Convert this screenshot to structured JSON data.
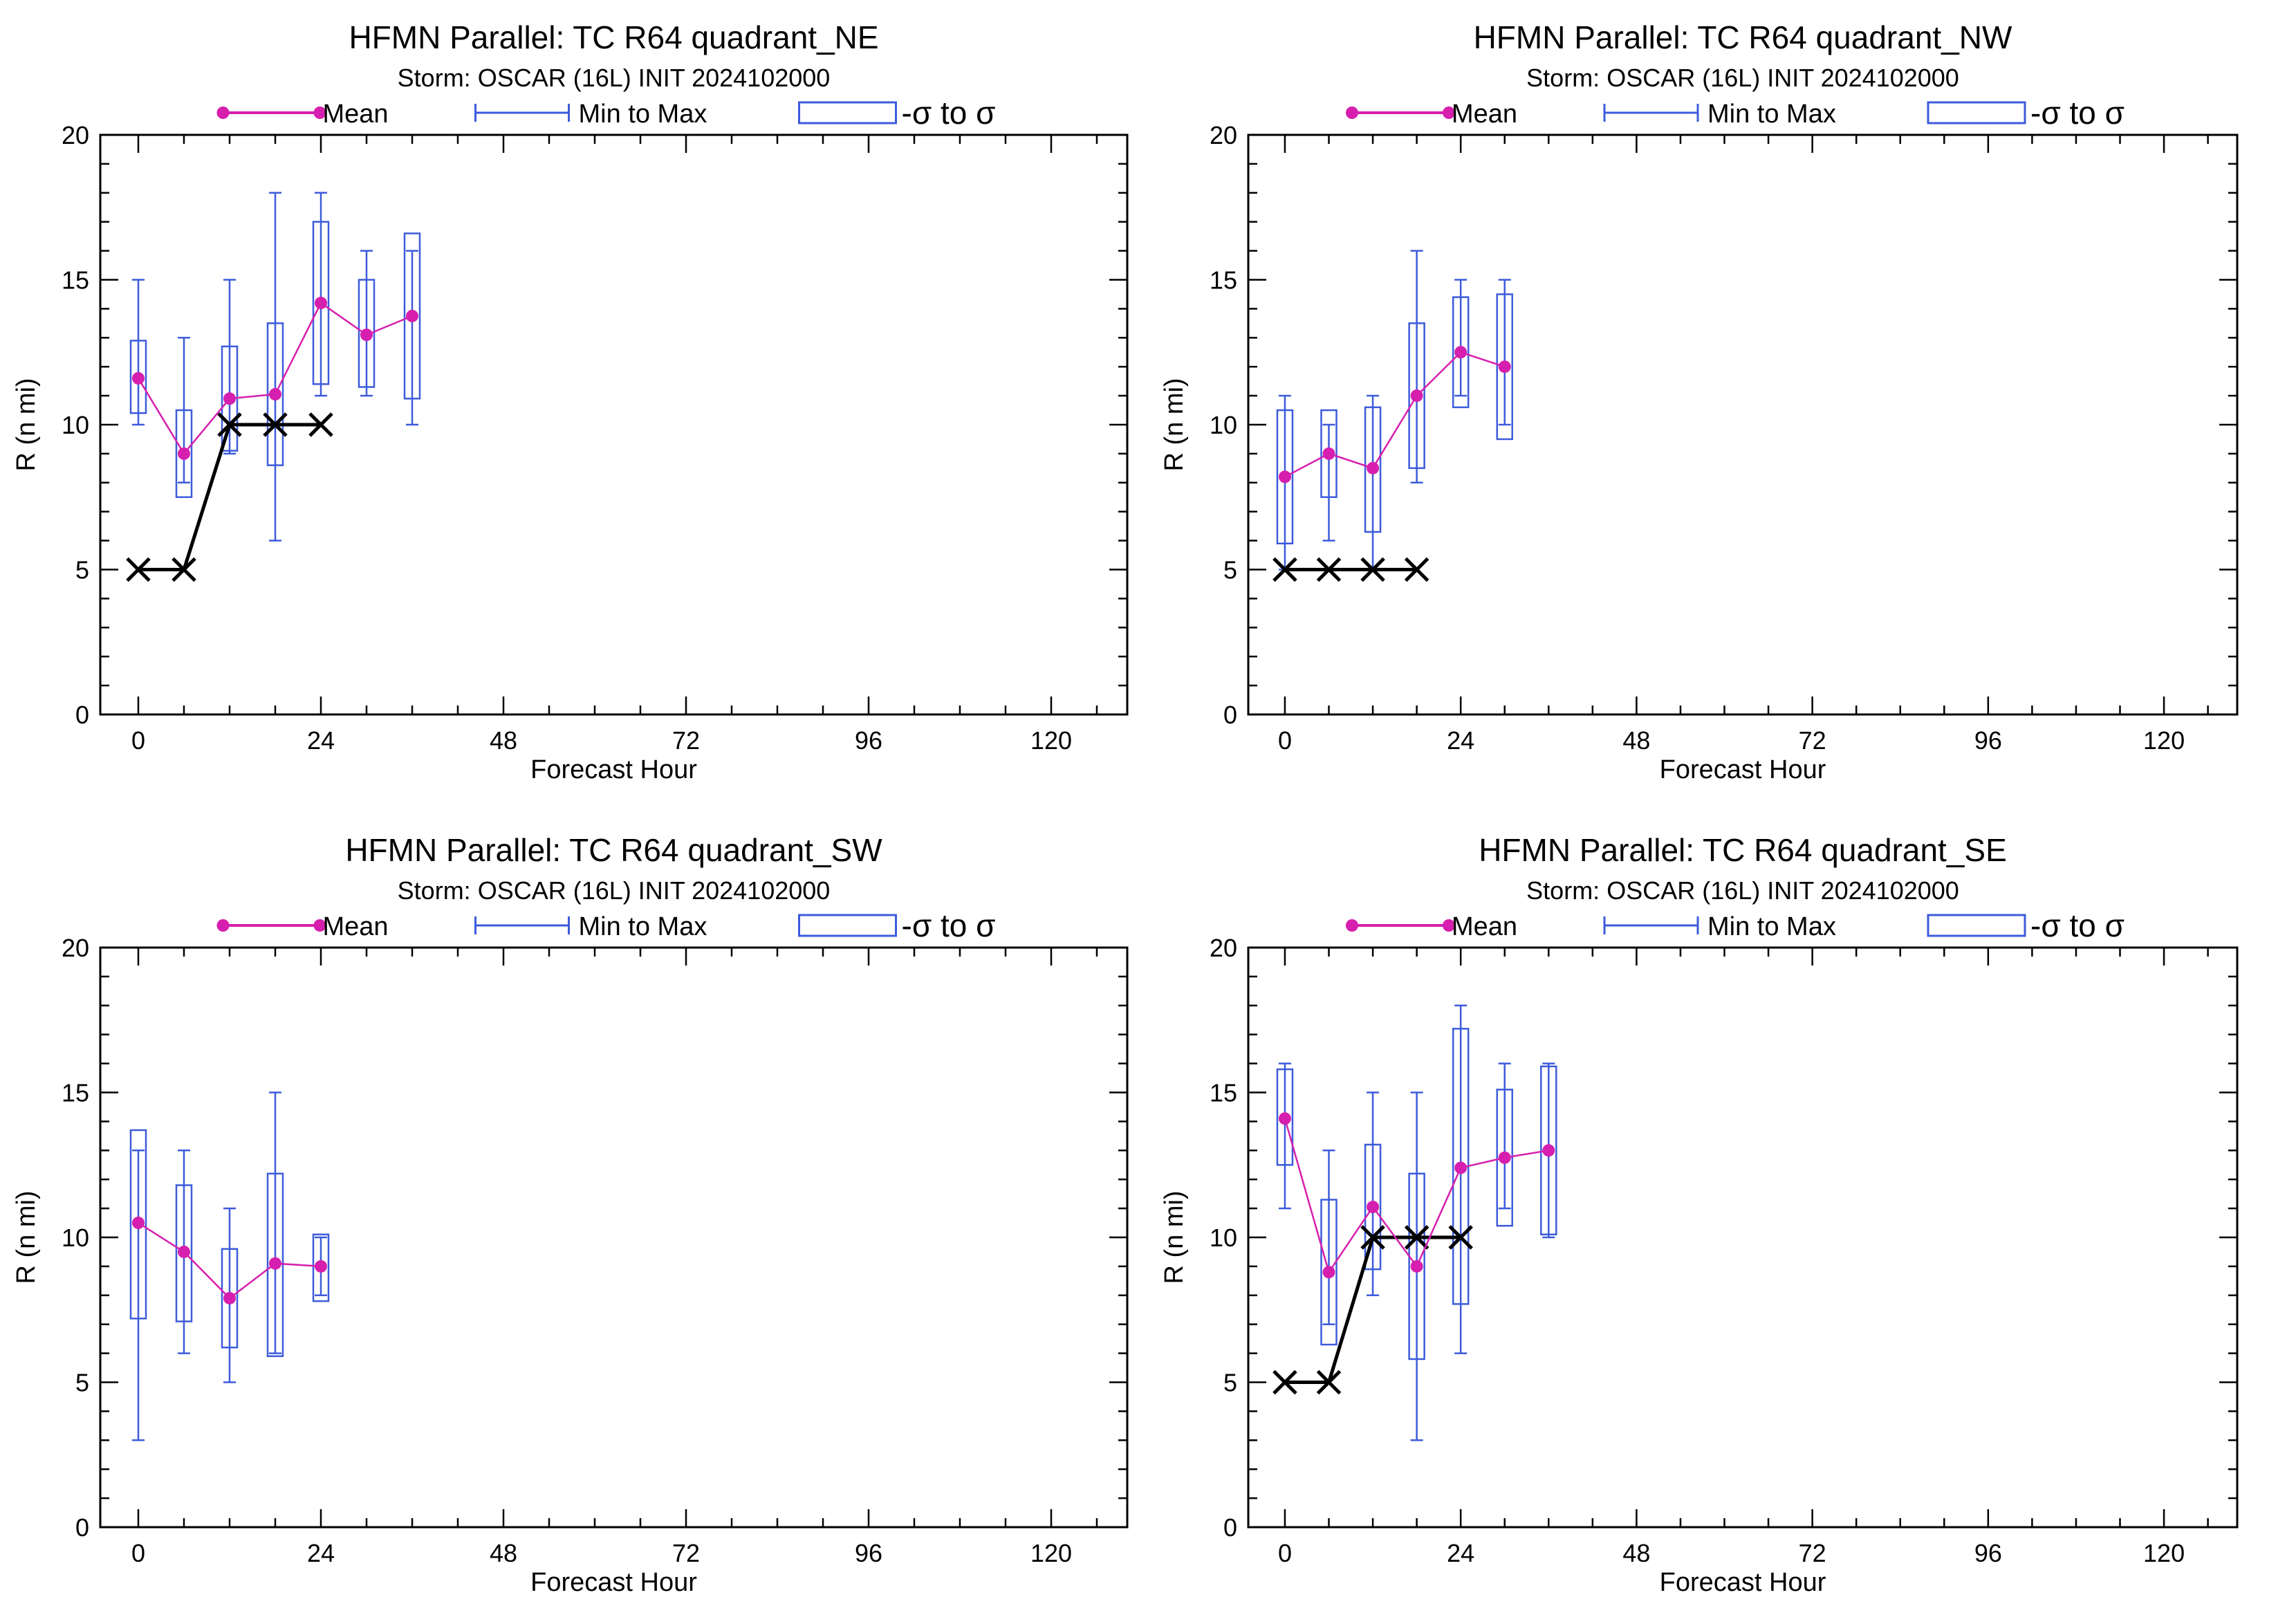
{
  "colors": {
    "mean": "#d61fae",
    "spread": "#3d5bdb",
    "best_track": "#000000",
    "axis": "#000000"
  },
  "legend": {
    "mean": "Mean",
    "range": "Min to Max",
    "sigma": "-σ to σ"
  },
  "chart_data": [
    {
      "type": "box",
      "title": "HFMN Parallel: TC  R64 quadrant_NE",
      "subtitle": "Storm: OSCAR (16L) INIT 2024102000",
      "xlabel": "Forecast Hour",
      "ylabel": "R (n mi)",
      "xlim": [
        -5,
        130
      ],
      "ylim": [
        0,
        20
      ],
      "xticks": [
        0,
        24,
        48,
        72,
        96,
        120
      ],
      "yticks": [
        0,
        5,
        10,
        15,
        20
      ],
      "x": [
        0,
        6,
        12,
        18,
        24,
        30,
        36
      ],
      "mean": [
        11.6,
        9.0,
        10.9,
        11.05,
        14.2,
        13.1,
        13.75
      ],
      "min": [
        10,
        8,
        9,
        6,
        11,
        11,
        10
      ],
      "max": [
        15,
        13,
        15,
        18,
        18,
        16,
        16
      ],
      "sd_low": [
        10.4,
        7.5,
        9.1,
        8.6,
        11.4,
        11.3,
        10.9
      ],
      "sd_high": [
        12.9,
        10.5,
        12.7,
        13.5,
        17.0,
        15.0,
        16.6
      ],
      "best_track": {
        "x": [
          0,
          6,
          12,
          18,
          24
        ],
        "y": [
          5,
          5,
          10,
          10,
          10
        ]
      }
    },
    {
      "type": "box",
      "title": "HFMN Parallel: TC  R64 quadrant_NW",
      "subtitle": "Storm: OSCAR (16L) INIT 2024102000",
      "xlabel": "Forecast Hour",
      "ylabel": "R (n mi)",
      "xlim": [
        -5,
        130
      ],
      "ylim": [
        0,
        20
      ],
      "xticks": [
        0,
        24,
        48,
        72,
        96,
        120
      ],
      "yticks": [
        0,
        5,
        10,
        15,
        20
      ],
      "x": [
        0,
        6,
        12,
        18,
        24,
        30
      ],
      "mean": [
        8.2,
        9.0,
        8.5,
        11.0,
        12.5,
        12.0
      ],
      "min": [
        5,
        6,
        5,
        8,
        11,
        10
      ],
      "max": [
        11,
        10,
        11,
        16,
        15,
        15
      ],
      "sd_low": [
        5.9,
        7.5,
        6.3,
        8.5,
        10.6,
        9.5
      ],
      "sd_high": [
        10.5,
        10.5,
        10.6,
        13.5,
        14.4,
        14.5
      ],
      "best_track": {
        "x": [
          0,
          6,
          12,
          18
        ],
        "y": [
          5,
          5,
          5,
          5
        ]
      }
    },
    {
      "type": "box",
      "title": "HFMN Parallel: TC  R64 quadrant_SW",
      "subtitle": "Storm: OSCAR (16L) INIT 2024102000",
      "xlabel": "Forecast Hour",
      "ylabel": "R (n mi)",
      "xlim": [
        -5,
        130
      ],
      "ylim": [
        0,
        20
      ],
      "xticks": [
        0,
        24,
        48,
        72,
        96,
        120
      ],
      "yticks": [
        0,
        5,
        10,
        15,
        20
      ],
      "x": [
        0,
        6,
        12,
        18,
        24
      ],
      "mean": [
        10.5,
        9.5,
        7.9,
        9.1,
        9.0
      ],
      "min": [
        3,
        6,
        5,
        6,
        8
      ],
      "max": [
        13,
        13,
        11,
        15,
        10
      ],
      "sd_low": [
        7.2,
        7.1,
        6.2,
        5.9,
        7.8
      ],
      "sd_high": [
        13.7,
        11.8,
        9.6,
        12.2,
        10.1
      ],
      "best_track": null
    },
    {
      "type": "box",
      "title": "HFMN Parallel: TC  R64 quadrant_SE",
      "subtitle": "Storm: OSCAR (16L) INIT 2024102000",
      "xlabel": "Forecast Hour",
      "ylabel": "R (n mi)",
      "xlim": [
        -5,
        130
      ],
      "ylim": [
        0,
        20
      ],
      "xticks": [
        0,
        24,
        48,
        72,
        96,
        120
      ],
      "yticks": [
        0,
        5,
        10,
        15,
        20
      ],
      "x": [
        0,
        6,
        12,
        18,
        24,
        30,
        36
      ],
      "mean": [
        14.1,
        8.8,
        11.05,
        9.0,
        12.4,
        12.75,
        13.0
      ],
      "min": [
        11,
        7,
        8,
        3,
        6,
        11,
        10
      ],
      "max": [
        16,
        13,
        15,
        15,
        18,
        16,
        16
      ],
      "sd_low": [
        12.5,
        6.3,
        8.9,
        5.8,
        7.7,
        10.4,
        10.1
      ],
      "sd_high": [
        15.8,
        11.3,
        13.2,
        12.2,
        17.2,
        15.1,
        15.9
      ],
      "best_track": {
        "x": [
          0,
          6,
          12,
          18,
          24
        ],
        "y": [
          5,
          5,
          10,
          10,
          10
        ]
      }
    }
  ]
}
